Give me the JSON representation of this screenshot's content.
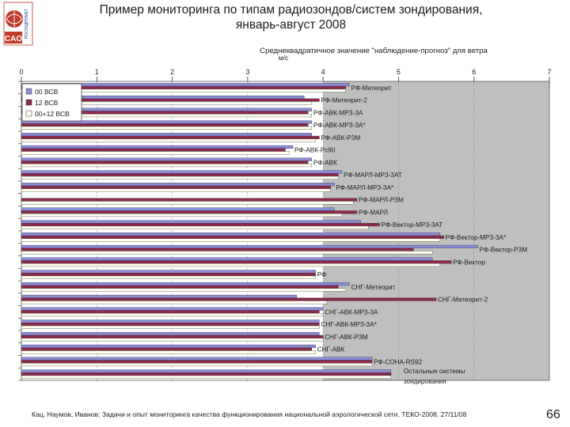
{
  "slide": {
    "logo_text": "CAO",
    "logo_side_text": "РОСГИДРОМЕТ",
    "title_line1": "Пример мониторинга по типам радиозондов/систем зондирования,",
    "title_line2": "январь-август 2008",
    "footer": "Кац, Наумов, Иванов: Задачи и опыт мониторинга качества функционирования национальной аэрологической сети. ТЕКО-2008. 27/11/08",
    "page_number": "66"
  },
  "colors": {
    "series_00": "#8b8bd8",
    "series_12": "#8b2a4a",
    "series_0012": "#fffff0",
    "plot_bg": "#bfbfbf",
    "plot_bg_left": "#ffffff"
  },
  "chart_data": {
    "type": "bar",
    "orientation": "horizontal",
    "title": "Среднеквадратичное значение \"наблюдение-прогноз\" для ветра",
    "unit": "м/с",
    "xlim": [
      0,
      7
    ],
    "xticks": [
      "0",
      "1",
      "2",
      "3",
      "4",
      "5",
      "6",
      "7"
    ],
    "legend": "top-left",
    "categories": [
      "РФ-Метеорит",
      "РФ-Метеорит-2",
      "РФ-АВК-МРЗ-3А",
      "РФ-АВК-МРЗ-3А*",
      "РФ-АВК-РЗМ",
      "РФ-АВК-Рс90",
      "РФ-АВК",
      "РФ-МАРЛ-МРЗ-3АТ",
      "РФ-МАРЛ-МРЗ-3А*",
      "РФ-МАРЛ-РЗМ",
      "РФ-МАРЛ",
      "РФ-Вектор-МРЗ-3АТ",
      "РФ-Вектор-МРЗ-3А*",
      "РФ-Вектор-РЗМ",
      "РФ-Вектор",
      "РФ",
      "СНГ-Метеорит",
      "СНГ-Метеорит-2",
      "СНГ-АВК-МРЗ-3А",
      "СНГ-АВК-МРЗ-3А*",
      "СНГ-АВК-РЗМ",
      "СНГ-АВК",
      "РФ-СОНА-RS92",
      "Остальные системы зондирования"
    ],
    "series": [
      {
        "name": "00 ВСВ",
        "values": [
          4.35,
          3.75,
          3.85,
          3.85,
          3.85,
          3.6,
          3.85,
          4.25,
          4.15,
          0.0,
          4.15,
          4.5,
          5.55,
          6.05,
          5.45,
          3.9,
          4.35,
          3.65,
          4.0,
          3.95,
          3.95,
          3.9,
          4.65,
          4.9
        ]
      },
      {
        "name": "12 ВСВ",
        "values": [
          4.3,
          3.95,
          3.8,
          3.8,
          3.95,
          3.5,
          3.8,
          4.2,
          4.1,
          4.45,
          4.45,
          4.75,
          5.6,
          5.2,
          5.7,
          3.9,
          4.2,
          5.5,
          3.95,
          3.95,
          4.0,
          3.85,
          4.65,
          4.9
        ]
      },
      {
        "name": "00+12 ВСВ",
        "values": [
          4.3,
          3.85,
          3.85,
          3.85,
          3.9,
          3.55,
          3.85,
          4.2,
          4.1,
          4.4,
          4.25,
          4.6,
          5.55,
          5.45,
          5.55,
          3.9,
          4.3,
          4.05,
          4.0,
          3.95,
          4.0,
          3.9,
          4.65,
          4.9
        ]
      }
    ]
  }
}
